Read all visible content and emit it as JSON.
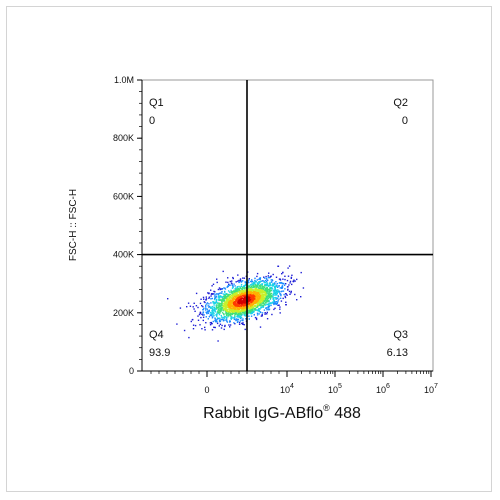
{
  "chart_data": {
    "type": "scatter",
    "subtype": "flow-cytometry-density-plot",
    "xlabel_main": "Rabbit IgG-ABflo",
    "xlabel_reg": "®",
    "xlabel_tail": " 488",
    "ylabel": "FSC-H :: FSC-H",
    "x_scale": "biexponential",
    "y_scale": "linear",
    "ylim": [
      0,
      1000000
    ],
    "y_ticks": [
      {
        "value": 0,
        "label": "0"
      },
      {
        "value": 200000,
        "label": "200K"
      },
      {
        "value": 400000,
        "label": "400K"
      },
      {
        "value": 600000,
        "label": "600K"
      },
      {
        "value": 800000,
        "label": "800K"
      },
      {
        "value": 1000000,
        "label": "1.0M"
      }
    ],
    "x_ticks": [
      {
        "value": 0,
        "base": "0",
        "exp": ""
      },
      {
        "value": 10000,
        "base": "10",
        "exp": "4"
      },
      {
        "value": 100000,
        "base": "10",
        "exp": "5"
      },
      {
        "value": 1000000,
        "base": "10",
        "exp": "6"
      },
      {
        "value": 10000000,
        "base": "10",
        "exp": "7"
      }
    ],
    "gate": {
      "x": 5000,
      "y": 400000
    },
    "quadrants": [
      {
        "name": "Q1",
        "percent": "0",
        "position": "top-left"
      },
      {
        "name": "Q2",
        "percent": "0",
        "position": "top-right"
      },
      {
        "name": "Q3",
        "percent": "6.13",
        "position": "bottom-right"
      },
      {
        "name": "Q4",
        "percent": "93.9",
        "position": "bottom-left"
      }
    ],
    "population": {
      "x_center": 1200,
      "y_center": 245000
    },
    "density_colors": [
      "#1f1fd6",
      "#1a8cff",
      "#19d2e6",
      "#3fe07a",
      "#c8f02a",
      "#ffb000",
      "#ff3a00",
      "#d40000"
    ],
    "grid": false,
    "legend": "none"
  }
}
